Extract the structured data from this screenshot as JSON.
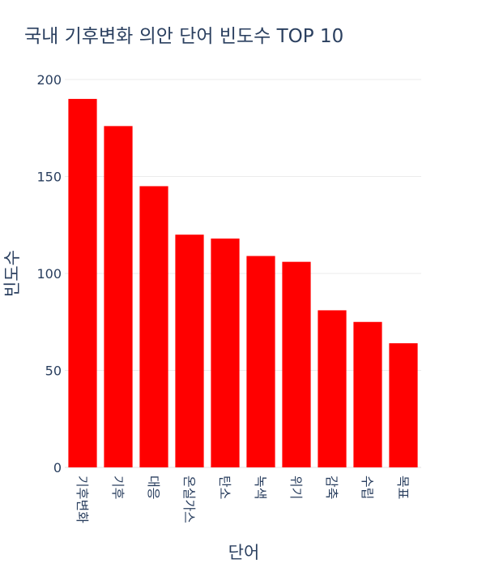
{
  "chart_data": {
    "type": "bar",
    "title": "국내 기후변화 의안 단어 빈도수 TOP 10",
    "xlabel": "단어",
    "ylabel": "빈도수",
    "categories": [
      "기후변화",
      "기후",
      "대응",
      "온실가스",
      "탄소",
      "녹색",
      "위기",
      "감축",
      "수립",
      "목표"
    ],
    "values": [
      190,
      176,
      145,
      120,
      118,
      109,
      106,
      81,
      75,
      64
    ],
    "ylim": [
      0,
      200
    ],
    "yticks": [
      0,
      50,
      100,
      150,
      200
    ],
    "bar_color": "#ff0000",
    "grid": true,
    "legend": "none"
  }
}
